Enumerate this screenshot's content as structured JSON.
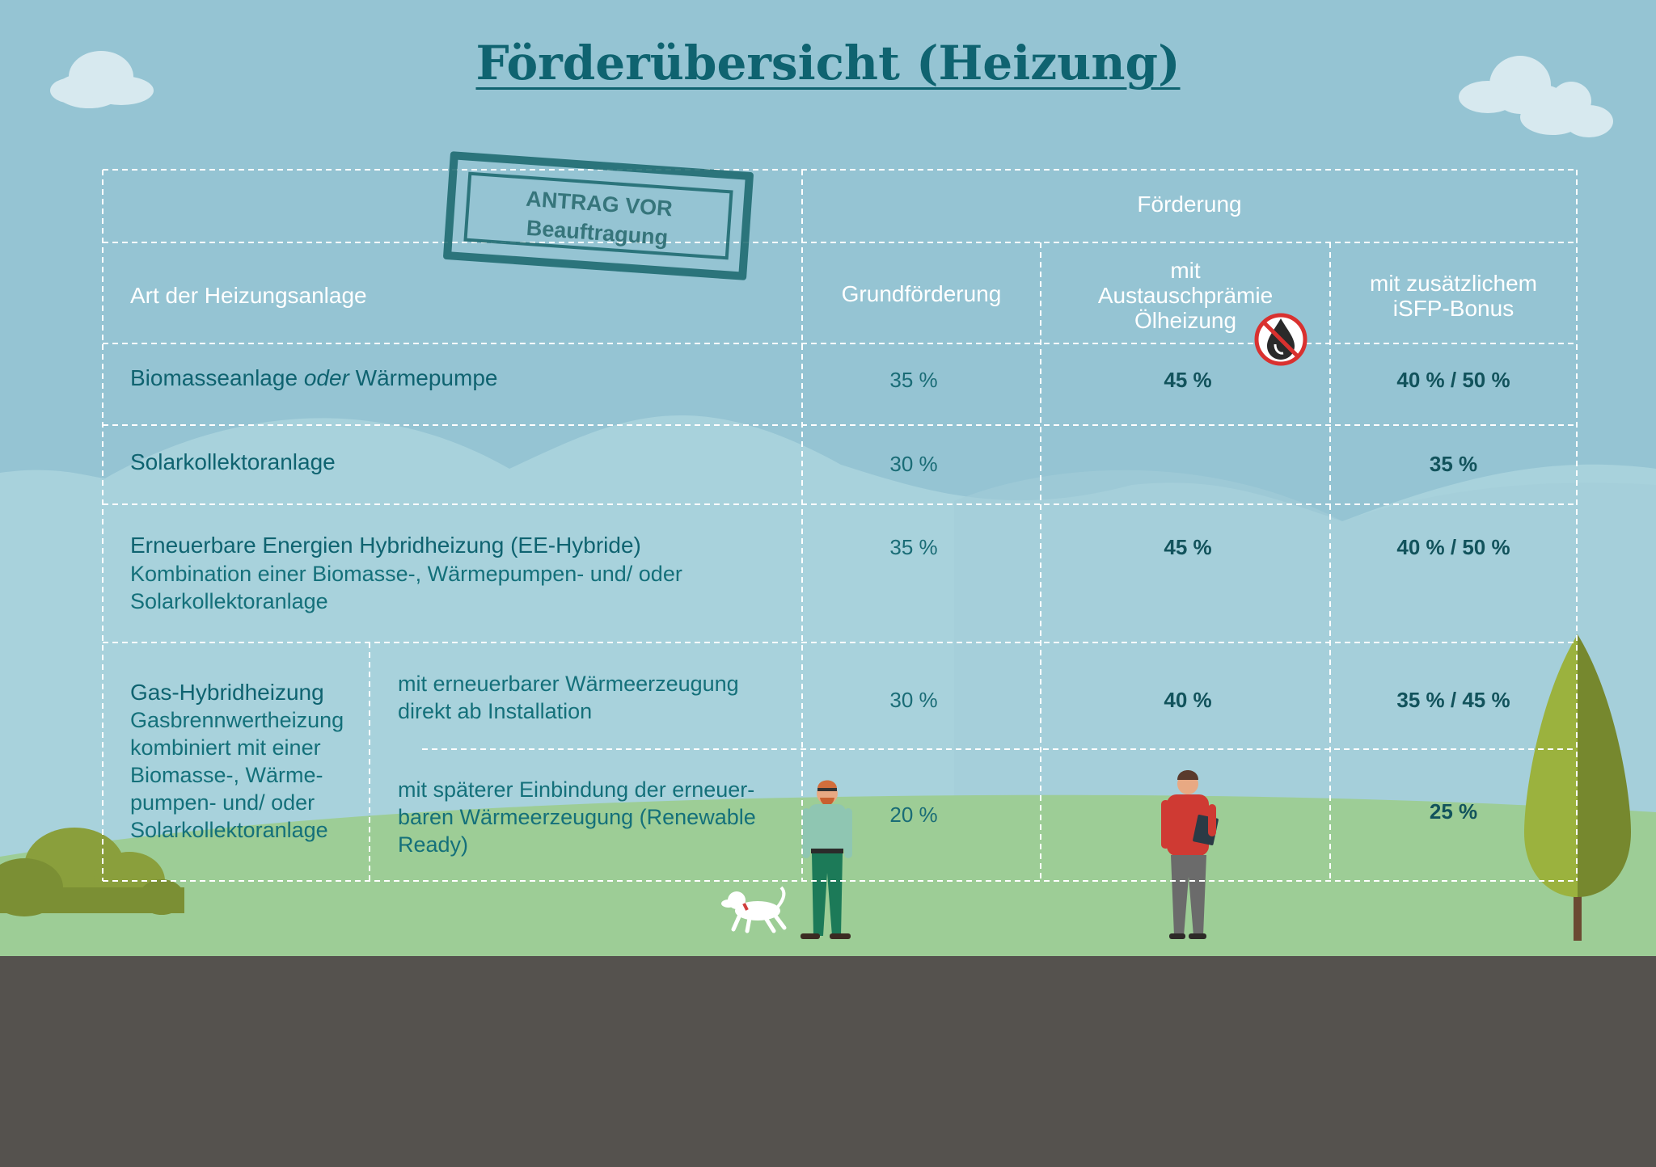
{
  "title": "Förderübersicht (Heizung)",
  "stamp": {
    "line1": "ANTRAG VOR",
    "line2": "Beauftragung"
  },
  "header": {
    "group": "Förderung",
    "col_type": "Art der Heizungsanlage",
    "col_base": "Grundförderung",
    "col_exchange": [
      "mit",
      "Austauschprämie",
      "Ölheizung"
    ],
    "col_isfp": [
      "mit zusätzlichem",
      "iSFP-Bonus"
    ]
  },
  "rows": {
    "biomass": {
      "label_a": "Biomasseanlage",
      "label_or": "oder",
      "label_b": "Wärmepumpe",
      "base": "35 %",
      "exchange": "45 %",
      "isfp": "40 % / 50 %"
    },
    "solar": {
      "label": "Solarkollektoranlage",
      "base": "30 %",
      "isfp": "35 %"
    },
    "ee_hybrid": {
      "label": "Erneuerbare Energien Hybridheizung (EE-Hybride)",
      "desc_1": "Kombination einer Biomasse-, Wärmepumpen- und/ oder",
      "desc_2": "Solarkollektoranlage",
      "base": "35 %",
      "exchange": "45 %",
      "isfp": "40 % / 50 %"
    },
    "gas_hybrid": {
      "label": "Gas-Hybridheizung",
      "desc": [
        "Gasbrennwertheizung",
        "kombiniert mit einer",
        "Biomasse-, Wärme-",
        "pumpen- und/ oder",
        "Solarkollektoranlage"
      ],
      "sub1": {
        "label": [
          "mit erneuerbarer Wärmeerzeugung",
          "direkt ab Installation"
        ],
        "base": "30 %",
        "exchange": "40 %",
        "isfp": "35 % / 45 %"
      },
      "sub2": {
        "label": [
          "mit späterer Einbindung der erneuer-",
          "baren Wärmeerzeugung (Renewable",
          "Ready)"
        ],
        "base": "20 %",
        "isfp": "25 %"
      }
    }
  },
  "colors": {
    "sky": "#95c4d3",
    "hills": "#a8d2dc",
    "grass": "#9dcd96",
    "ground": "#55524e",
    "accent": "#0f6370",
    "no_oil_red": "#d9312f"
  },
  "icons": [
    "no-oil-icon",
    "cloud-icon",
    "tree-icon",
    "bush-icon",
    "person-with-dog-icon",
    "person-with-clipboard-icon",
    "dog-icon"
  ]
}
